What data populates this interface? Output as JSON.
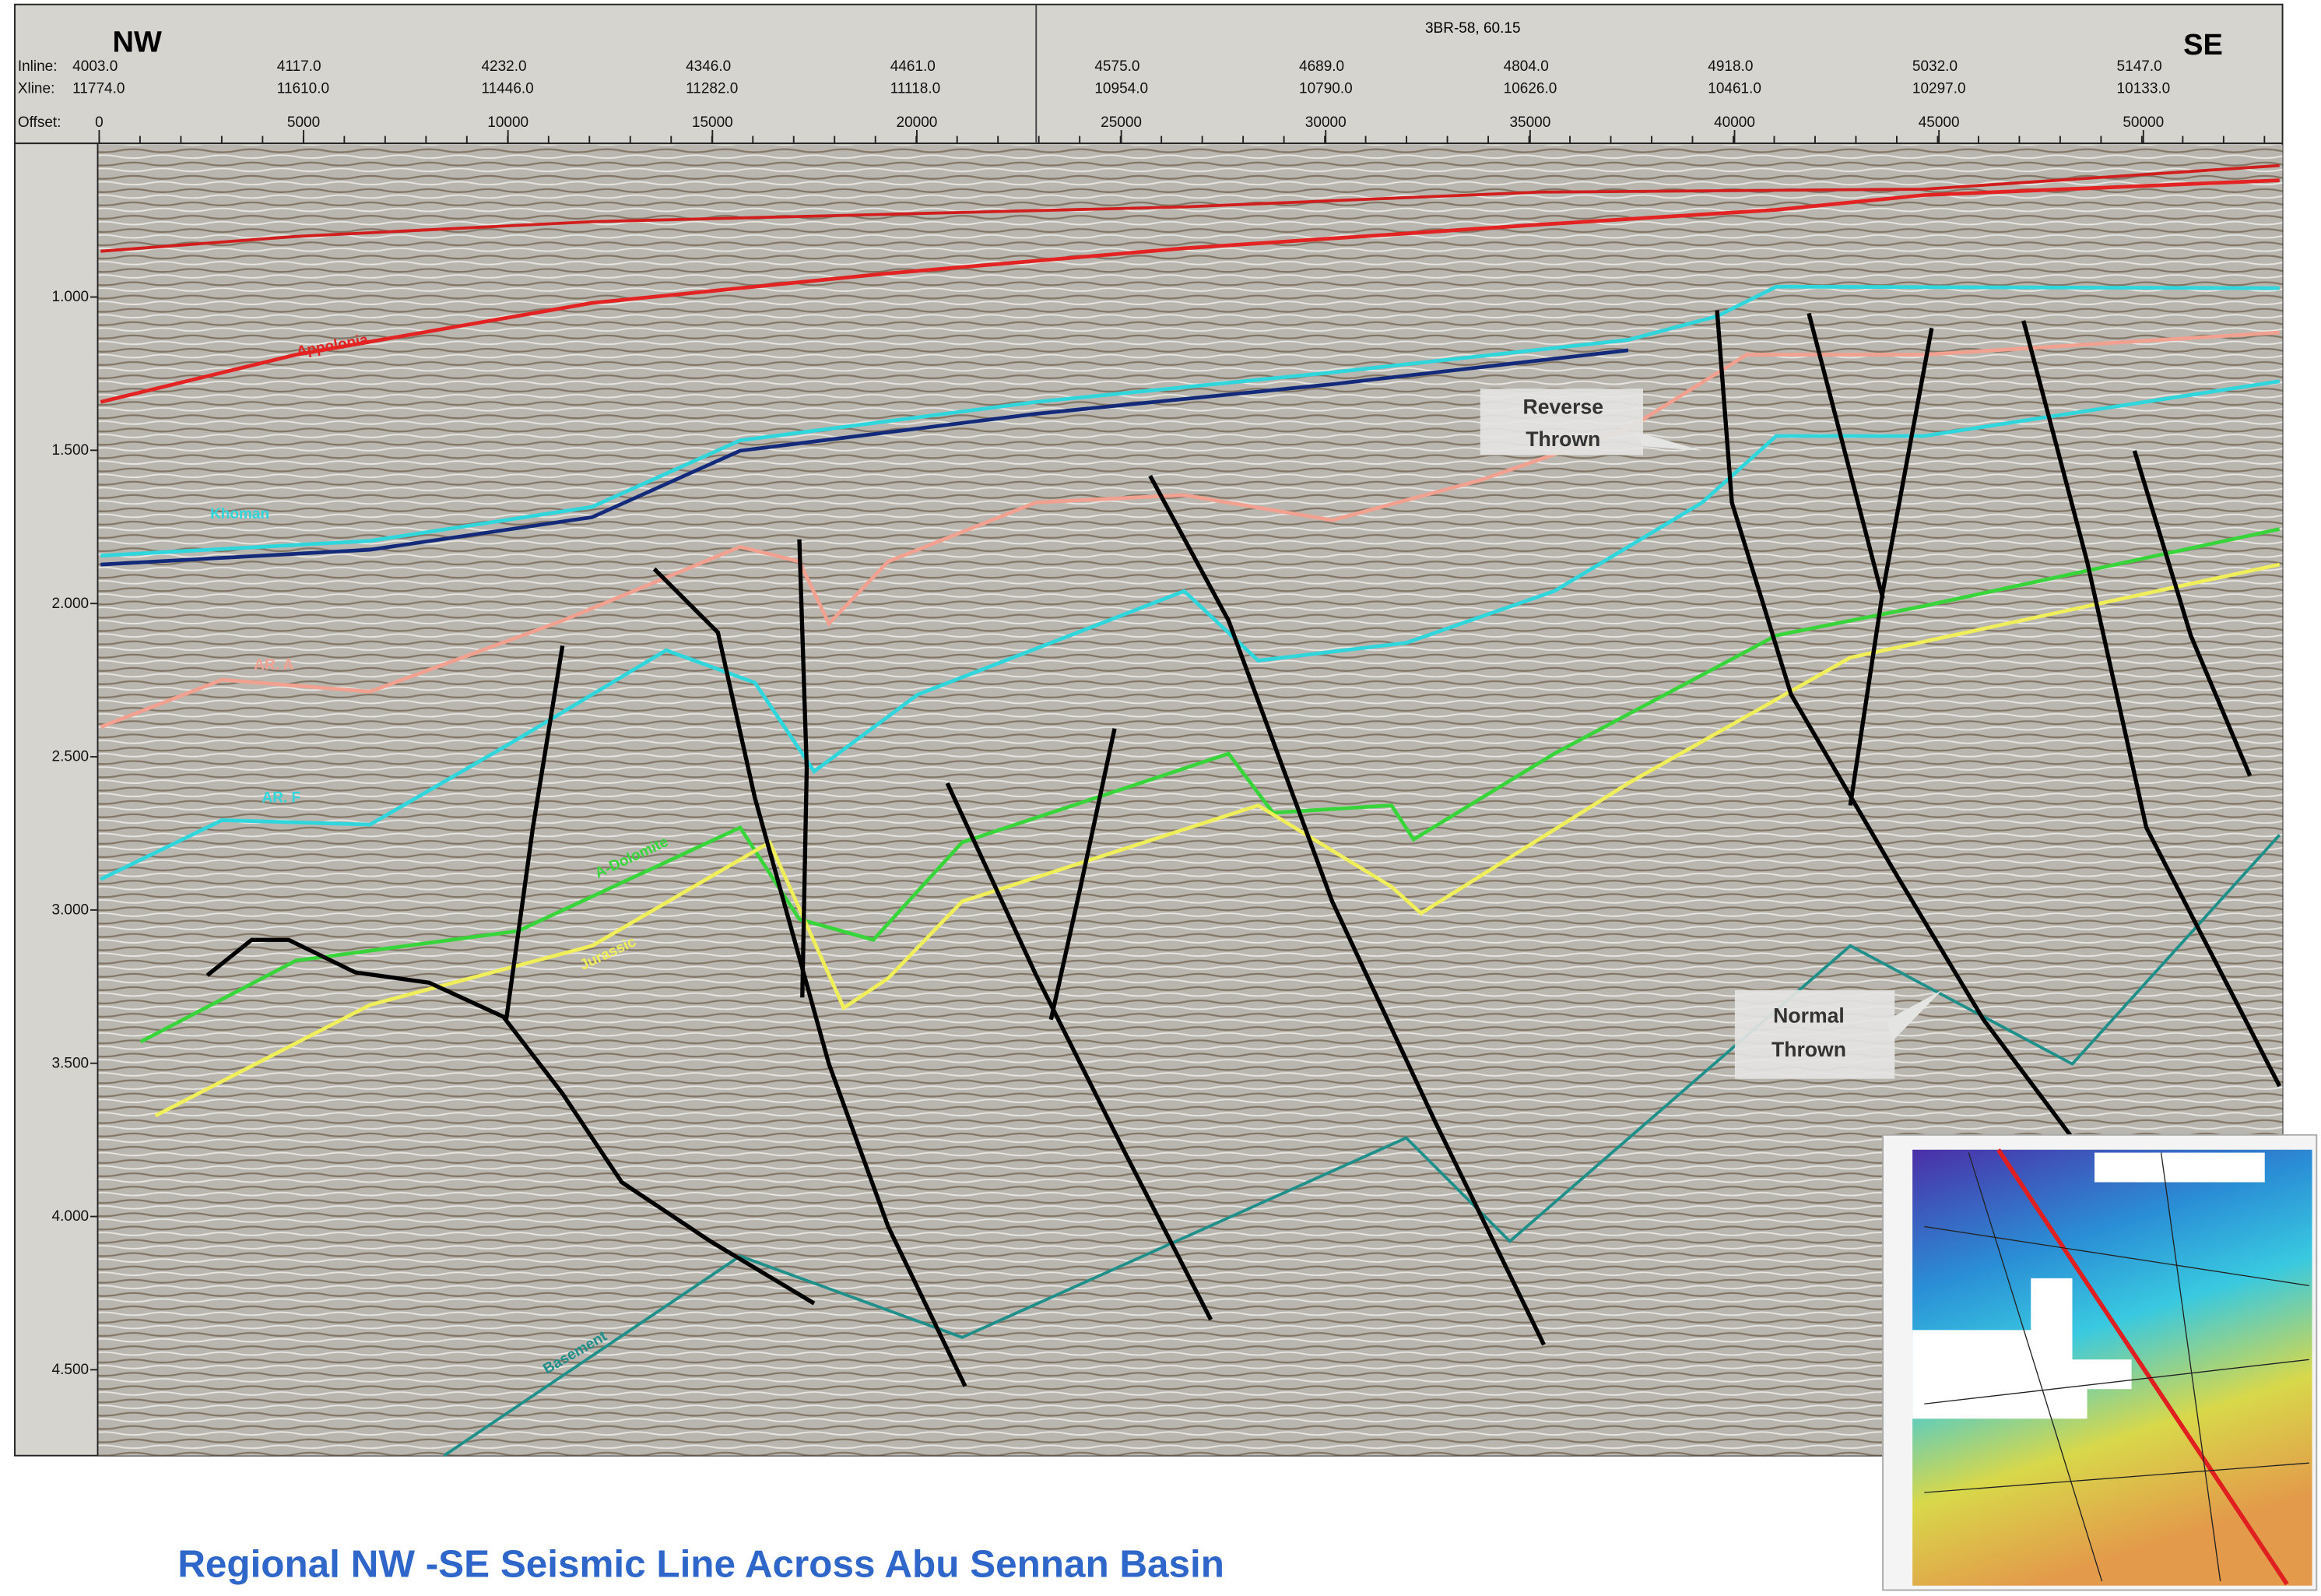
{
  "header": {
    "left_direction": "NW",
    "right_direction": "SE",
    "well_marker": "3BR-58, 60.15",
    "row_labels": [
      "Inline:",
      "Xline:",
      "Offset:"
    ],
    "inline": [
      "4003.0",
      "4117.0",
      "4232.0",
      "4346.0",
      "4461.0",
      "4575.0",
      "4689.0",
      "4804.0",
      "4918.0",
      "5032.0",
      "5147.0"
    ],
    "xline": [
      "11774.0",
      "11610.0",
      "11446.0",
      "11282.0",
      "11118.0",
      "10954.0",
      "10790.0",
      "10626.0",
      "10461.0",
      "10297.0",
      "10133.0"
    ],
    "offset": [
      "0",
      "5000",
      "10000",
      "15000",
      "20000",
      "25000",
      "30000",
      "35000",
      "40000",
      "45000",
      "50000"
    ]
  },
  "time_axis": [
    "1.000",
    "1.500",
    "2.000",
    "2.500",
    "3.000",
    "3.500",
    "4.000",
    "4.500"
  ],
  "horizons": [
    "Appolonia",
    "Khoman",
    "AR. A",
    "AR. F",
    "A-Dolomite",
    "Jurassic",
    "Basement"
  ],
  "callouts": [
    {
      "lines": [
        "Reverse",
        "Thrown"
      ]
    },
    {
      "lines": [
        "Normal",
        "Thrown"
      ]
    }
  ],
  "caption": "Regional NW -SE Seismic Line Across Abu Sennan Basin"
}
